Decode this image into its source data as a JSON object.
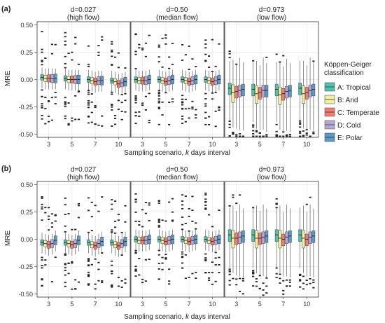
{
  "figure": {
    "x_tick_labels": [
      "3",
      "5",
      "7",
      "10"
    ],
    "legend": {
      "title_line1": "Köppen-Geiger",
      "title_line2": "classification",
      "items": [
        {
          "label": "A: Tropical",
          "color": "#4fc3b0"
        },
        {
          "label": "B: Arid",
          "color": "#f3f0a0"
        },
        {
          "label": "C: Temperate",
          "color": "#f47a72"
        },
        {
          "label": "D: Cold",
          "color": "#b7a9d6"
        },
        {
          "label": "E: Polar",
          "color": "#5b9bc9"
        }
      ]
    }
  },
  "chart_data": [
    {
      "type": "boxplot",
      "panel_label": "(a)",
      "ylabel": "MRE",
      "xlabel_prefix": "Sampling scenario, ",
      "xlabel_italic": "k",
      "xlabel_suffix": " days interval",
      "ylim": [
        -0.53,
        0.53
      ],
      "y_ticks": [
        -0.5,
        -0.25,
        0.0,
        0.25,
        0.5
      ],
      "y_tick_labels": [
        "-0.50",
        "-0.25",
        "0.00",
        "0.25",
        "0.50"
      ],
      "facets": [
        {
          "title1": "d=0.027",
          "title2": "(high flow)",
          "groups": [
            {
              "x": "3",
              "medians": [
                0.02,
                0.01,
                0.01,
                0.01,
                0.01
              ]
            },
            {
              "x": "5",
              "medians": [
                0.01,
                0.0,
                0.0,
                0.0,
                0.0
              ]
            },
            {
              "x": "7",
              "medians": [
                0.0,
                -0.01,
                -0.02,
                -0.01,
                -0.01
              ]
            },
            {
              "x": "10",
              "medians": [
                -0.01,
                -0.02,
                -0.04,
                -0.03,
                -0.02
              ]
            }
          ]
        },
        {
          "title1": "d=0.50",
          "title2": "(median flow)",
          "groups": [
            {
              "x": "3",
              "medians": [
                0.0,
                -0.01,
                -0.01,
                -0.01,
                0.0
              ]
            },
            {
              "x": "5",
              "medians": [
                0.0,
                -0.01,
                -0.02,
                -0.01,
                0.0
              ]
            },
            {
              "x": "7",
              "medians": [
                0.0,
                -0.01,
                -0.02,
                -0.01,
                0.0
              ]
            },
            {
              "x": "10",
              "medians": [
                0.0,
                -0.01,
                -0.02,
                -0.01,
                0.0
              ]
            }
          ]
        },
        {
          "title1": "d=0.973",
          "title2": "(low flow)",
          "groups": [
            {
              "x": "3",
              "medians": [
                -0.08,
                -0.12,
                -0.11,
                -0.1,
                -0.09
              ]
            },
            {
              "x": "5",
              "medians": [
                -0.09,
                -0.13,
                -0.12,
                -0.1,
                -0.1
              ]
            },
            {
              "x": "7",
              "medians": [
                -0.09,
                -0.14,
                -0.13,
                -0.11,
                -0.1
              ]
            },
            {
              "x": "10",
              "medians": [
                -0.08,
                -0.13,
                -0.12,
                -0.1,
                -0.09
              ]
            }
          ]
        }
      ]
    },
    {
      "type": "boxplot",
      "panel_label": "(b)",
      "ylabel": "MRE",
      "xlabel_prefix": "Sampling scenario, ",
      "xlabel_italic": "k",
      "xlabel_suffix": " days interval",
      "ylim": [
        -0.53,
        0.53
      ],
      "y_ticks": [
        -0.5,
        -0.25,
        0.0,
        0.25,
        0.5
      ],
      "y_tick_labels": [
        "-0.50",
        "-0.25",
        "0.00",
        "0.25",
        "0.50"
      ],
      "facets": [
        {
          "title1": "d=0.027",
          "title2": "(high flow)",
          "groups": [
            {
              "x": "3",
              "medians": [
                -0.03,
                -0.04,
                -0.05,
                -0.04,
                -0.01
              ]
            },
            {
              "x": "5",
              "medians": [
                -0.03,
                -0.04,
                -0.05,
                -0.04,
                -0.01
              ]
            },
            {
              "x": "7",
              "medians": [
                -0.03,
                -0.05,
                -0.06,
                -0.04,
                -0.02
              ]
            },
            {
              "x": "10",
              "medians": [
                -0.03,
                -0.05,
                -0.06,
                -0.04,
                -0.02
              ]
            }
          ]
        },
        {
          "title1": "d=0.50",
          "title2": "(median flow)",
          "groups": [
            {
              "x": "3",
              "medians": [
                0.0,
                -0.01,
                -0.01,
                -0.01,
                0.0
              ]
            },
            {
              "x": "5",
              "medians": [
                0.0,
                -0.01,
                -0.02,
                -0.01,
                0.0
              ]
            },
            {
              "x": "7",
              "medians": [
                0.0,
                -0.01,
                -0.02,
                -0.01,
                0.0
              ]
            },
            {
              "x": "10",
              "medians": [
                0.0,
                -0.01,
                -0.02,
                -0.01,
                0.0
              ]
            }
          ]
        },
        {
          "title1": "d=0.973",
          "title2": "(low flow)",
          "groups": [
            {
              "x": "3",
              "medians": [
                0.04,
                0.01,
                0.01,
                0.02,
                0.03
              ]
            },
            {
              "x": "5",
              "medians": [
                0.04,
                0.01,
                0.01,
                0.02,
                0.03
              ]
            },
            {
              "x": "7",
              "medians": [
                0.04,
                0.01,
                0.0,
                0.02,
                0.03
              ]
            },
            {
              "x": "10",
              "medians": [
                0.04,
                0.01,
                0.0,
                0.02,
                0.03
              ]
            }
          ]
        }
      ]
    }
  ]
}
